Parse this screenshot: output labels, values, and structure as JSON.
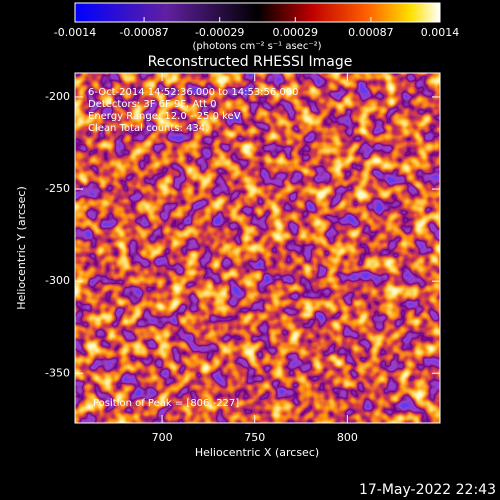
{
  "chart_data": {
    "type": "heatmap",
    "title": "Reconstructed RHESSI Image",
    "x_label": "Heliocentric X (arcsec)",
    "y_label": "Heliocentric Y (arcsec)",
    "xlim": [
      653,
      850
    ],
    "xticks": [
      700,
      750,
      800
    ],
    "ylim": [
      -377,
      -187
    ],
    "yticks": [
      -200,
      -250,
      -300,
      -350
    ],
    "colorbar": {
      "lim": [
        -0.0014,
        0.0014
      ],
      "ticks": [
        -0.0014,
        -0.00087,
        -0.00029,
        0.00029,
        0.00087,
        0.0014
      ],
      "label": "(photons cm⁻² s⁻¹ asec⁻²)"
    },
    "annotations": [
      "6-Oct-2014 14:52:36.000 to 14:53:56.000",
      "Detectors: 3F 6F 9F, Att 0",
      "Energy Range: 12.0 - 25.0 keV",
      "Clean    Total counts: 434."
    ],
    "peak_label": "Position of Peak = [806,-227]",
    "timestamp": "17-May-2022 22:43"
  }
}
